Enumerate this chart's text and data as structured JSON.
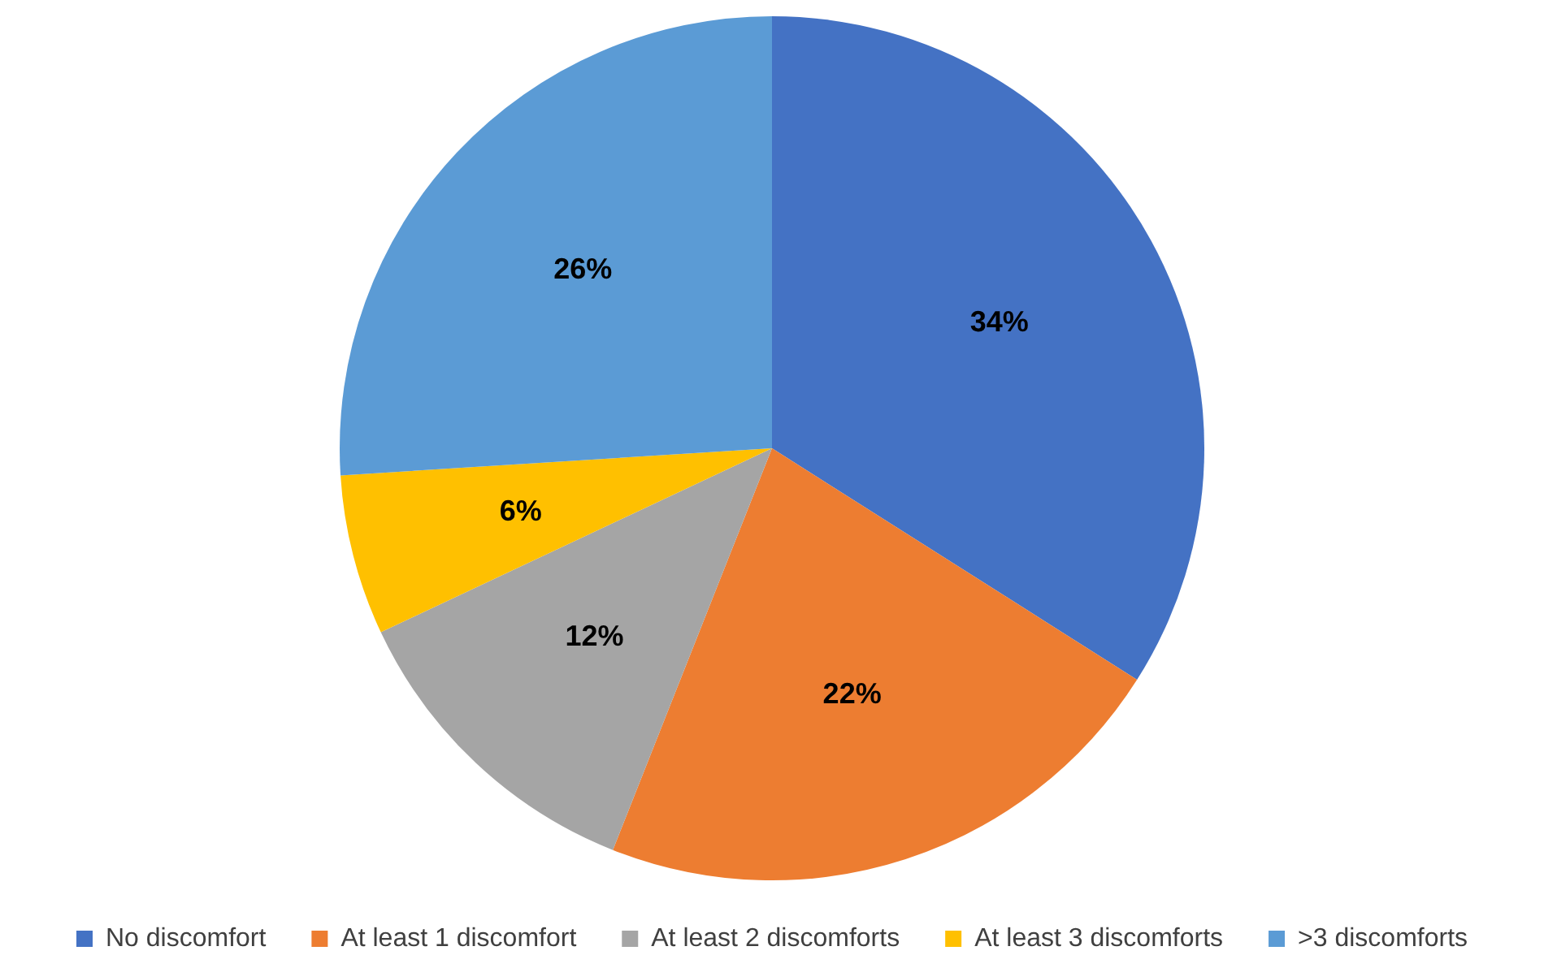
{
  "chart_data": {
    "type": "pie",
    "categories": [
      "No discomfort",
      "At least 1 discomfort",
      "At least 2 discomforts",
      "At least 3 discomforts",
      ">3 discomforts"
    ],
    "values": [
      34,
      22,
      12,
      6,
      26
    ],
    "colors": [
      "#4472c4",
      "#ed7d31",
      "#a5a5a5",
      "#ffc000",
      "#5b9bd5"
    ],
    "value_labels": [
      "34%",
      "22%",
      "12%",
      "6%",
      "26%"
    ],
    "legend": "bottom"
  }
}
